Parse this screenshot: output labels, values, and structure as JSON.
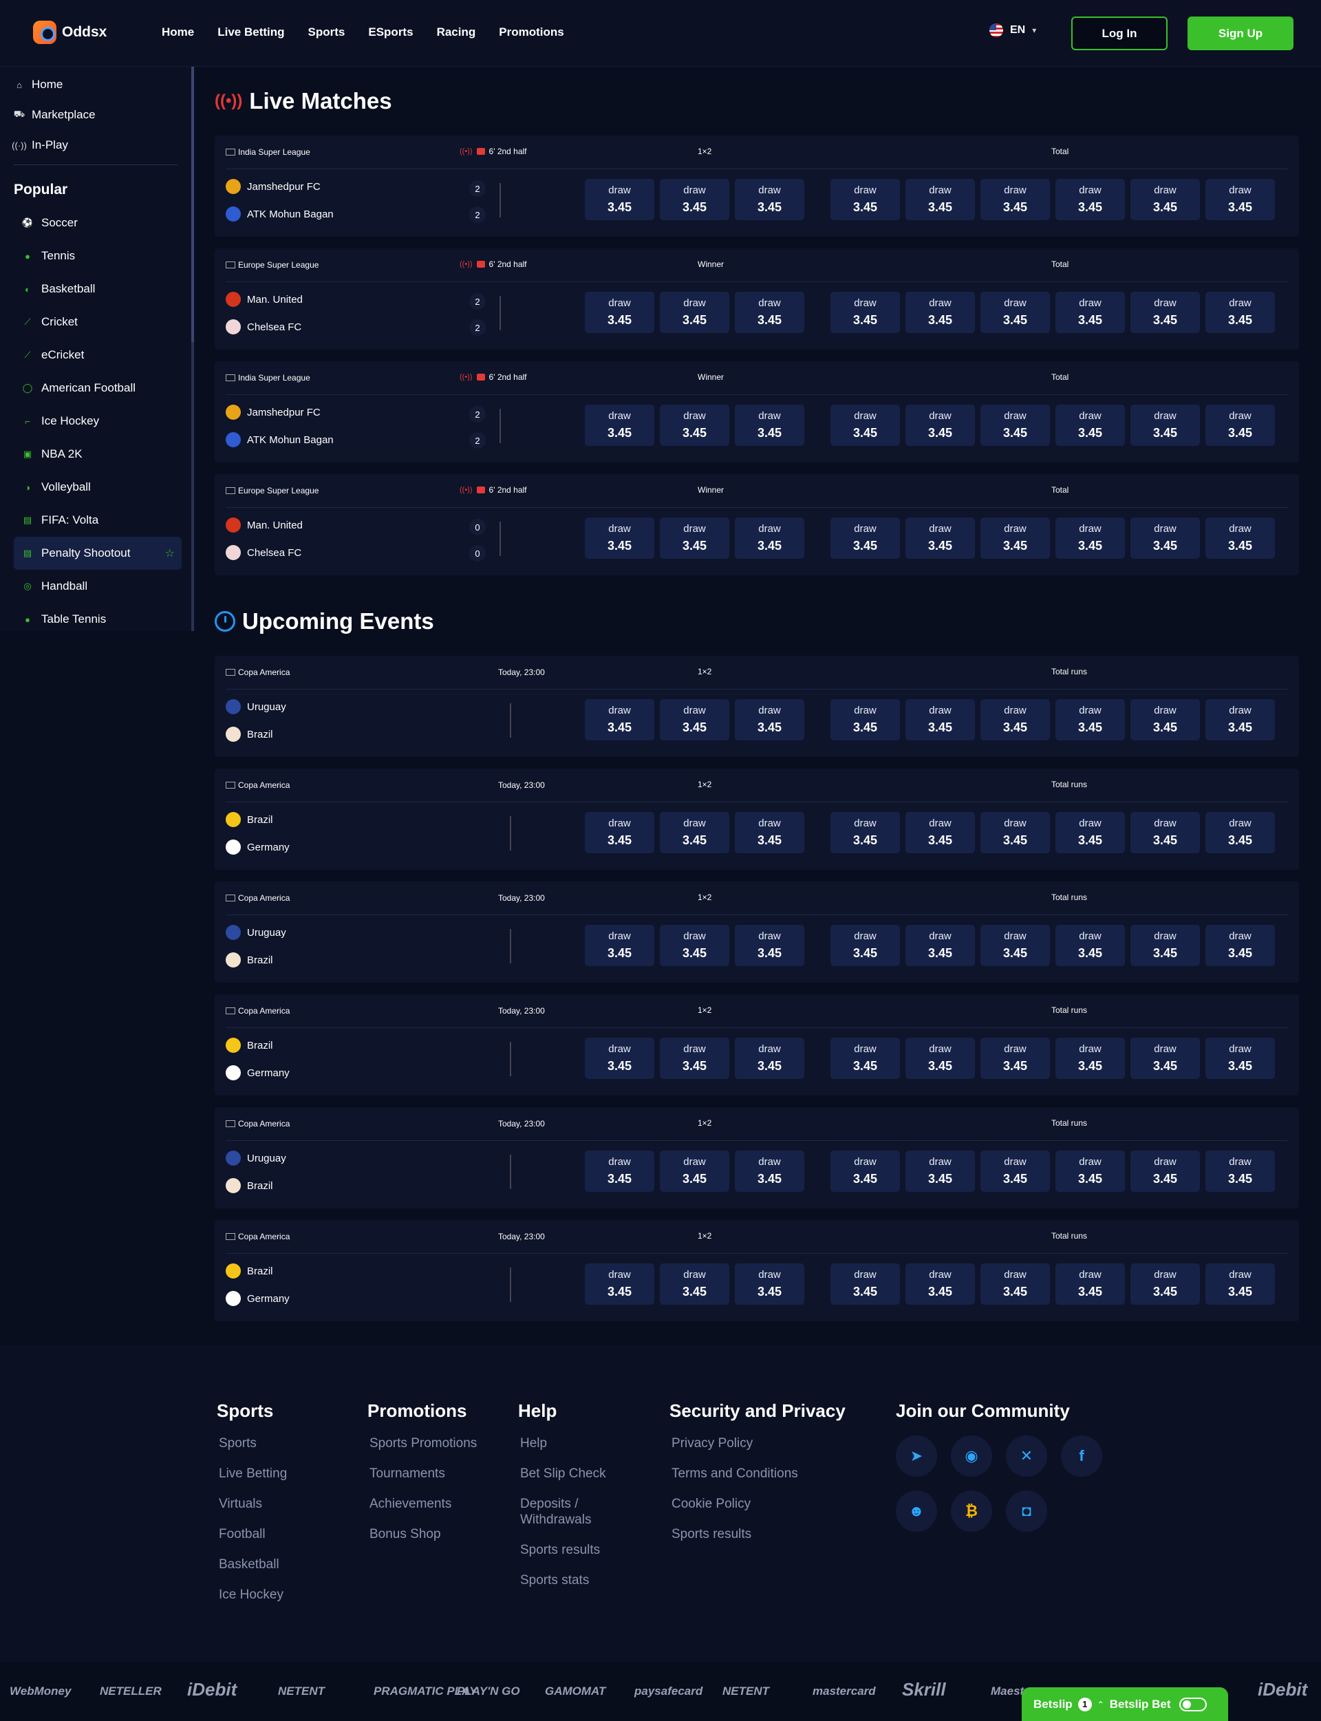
{
  "brand": {
    "name": "Oddsx"
  },
  "nav": [
    "Home",
    "Live Betting",
    "Sports",
    "ESports",
    "Racing",
    "Promotions"
  ],
  "header": {
    "lang": "EN",
    "login": "Log In",
    "signup": "Sign Up"
  },
  "sidebar": {
    "top": [
      {
        "label": "Home",
        "icon": "home-icon"
      },
      {
        "label": "Marketplace",
        "icon": "cart-icon"
      },
      {
        "label": "In-Play",
        "icon": "broadcast-icon"
      }
    ],
    "popular_title": "Popular",
    "popular": [
      {
        "label": "Soccer",
        "icon": "⚽"
      },
      {
        "label": "Tennis",
        "icon": "●"
      },
      {
        "label": "Basketball",
        "icon": "◐"
      },
      {
        "label": "Cricket",
        "icon": "⟋"
      },
      {
        "label": "eCricket",
        "icon": "⟋"
      },
      {
        "label": "American Football",
        "icon": "◯"
      },
      {
        "label": "Ice Hockey",
        "icon": "⌐"
      },
      {
        "label": "NBA 2K",
        "icon": "▣"
      },
      {
        "label": "Volleyball",
        "icon": "◑"
      },
      {
        "label": "FIFA: Volta",
        "icon": "▤"
      },
      {
        "label": "Penalty Shootout",
        "icon": "▤",
        "active": true
      },
      {
        "label": "Handball",
        "icon": "◎"
      },
      {
        "label": "Table Tennis",
        "icon": "●"
      }
    ]
  },
  "live": {
    "title": "Live Matches",
    "matches": [
      {
        "league": "India Super League",
        "time": "6' 2nd half",
        "h1": "1×2",
        "h2": "Total",
        "teams": [
          "Jamshedpur FC",
          "ATK Mohun Bagan"
        ],
        "scores": [
          "2",
          "2"
        ],
        "c": [
          "#e8a317",
          "#2f5bd3"
        ]
      },
      {
        "league": "Europe Super League",
        "time": "6' 2nd half",
        "h1": "Winner",
        "h2": "Total",
        "teams": [
          "Man. United",
          "Chelsea FC"
        ],
        "scores": [
          "2",
          "2"
        ],
        "c": [
          "#d4351c",
          "#f0d7d7"
        ]
      },
      {
        "league": "India Super League",
        "time": "6' 2nd half",
        "h1": "Winner",
        "h2": "Total",
        "teams": [
          "Jamshedpur FC",
          "ATK Mohun Bagan"
        ],
        "scores": [
          "2",
          "2"
        ],
        "c": [
          "#e8a317",
          "#2f5bd3"
        ]
      },
      {
        "league": "Europe Super League",
        "time": "6' 2nd half",
        "h1": "Winner",
        "h2": "Total",
        "teams": [
          "Man. United",
          "Chelsea FC"
        ],
        "scores": [
          "0",
          "0"
        ],
        "c": [
          "#d4351c",
          "#f0d7d7"
        ]
      }
    ]
  },
  "upcoming": {
    "title": "Upcoming Events",
    "matches": [
      {
        "league": "Copa America",
        "time": "Today, 23:00",
        "h1": "1×2",
        "h2": "Total runs",
        "teams": [
          "Uruguay",
          "Brazil"
        ],
        "c": [
          "#2b4aa0",
          "#f3e2d0"
        ]
      },
      {
        "league": "Copa America",
        "time": "Today, 23:00",
        "h1": "1×2",
        "h2": "Total runs",
        "teams": [
          "Brazil",
          "Germany"
        ],
        "c": [
          "#f5c518",
          "#ffffff"
        ]
      },
      {
        "league": "Copa America",
        "time": "Today, 23:00",
        "h1": "1×2",
        "h2": "Total runs",
        "teams": [
          "Uruguay",
          "Brazil"
        ],
        "c": [
          "#2b4aa0",
          "#f3e2d0"
        ]
      },
      {
        "league": "Copa America",
        "time": "Today, 23:00",
        "h1": "1×2",
        "h2": "Total runs",
        "teams": [
          "Brazil",
          "Germany"
        ],
        "c": [
          "#f5c518",
          "#ffffff"
        ]
      },
      {
        "league": "Copa America",
        "time": "Today, 23:00",
        "h1": "1×2",
        "h2": "Total runs",
        "teams": [
          "Uruguay",
          "Brazil"
        ],
        "c": [
          "#2b4aa0",
          "#f3e2d0"
        ]
      },
      {
        "league": "Copa America",
        "time": "Today, 23:00",
        "h1": "1×2",
        "h2": "Total runs",
        "teams": [
          "Brazil",
          "Germany"
        ],
        "c": [
          "#f5c518",
          "#ffffff"
        ]
      }
    ]
  },
  "odd": {
    "label": "draw",
    "value": "3.45"
  },
  "footer": {
    "cols": [
      {
        "title": "Sports",
        "links": [
          "Sports",
          "Live Betting",
          "Virtuals",
          "Football",
          "Basketball",
          "Ice Hockey"
        ]
      },
      {
        "title": "Promotions",
        "links": [
          "Sports Promotions",
          "Tournaments",
          "Achievements",
          "Bonus Shop"
        ]
      },
      {
        "title": "Help",
        "links": [
          "Help",
          "Bet Slip Check",
          "Deposits / Withdrawals",
          "Sports results",
          "Sports stats"
        ]
      },
      {
        "title": "Security and Privacy",
        "links": [
          "Privacy Policy",
          "Terms and Conditions",
          "Cookie Policy",
          "Sports results"
        ]
      }
    ],
    "community_title": "Join our Community",
    "social": [
      {
        "name": "telegram-icon",
        "g": "➤"
      },
      {
        "name": "github-icon",
        "g": "◉"
      },
      {
        "name": "x-icon",
        "g": "✕"
      },
      {
        "name": "facebook-icon",
        "g": "f"
      },
      {
        "name": "discord-icon",
        "g": "☻"
      },
      {
        "name": "bitcoin-icon",
        "g": "₿"
      },
      {
        "name": "instagram-icon",
        "g": "◘"
      }
    ]
  },
  "payments": [
    "WebMoney",
    "NETELLER",
    "iDebit",
    "NETENT",
    "PRAGMATIC PLAY",
    "PLAY'N GO",
    "GAMOMAT",
    "paysafecard",
    "NETENT",
    "mastercard",
    "Skrill",
    "Maestro",
    "iDebit"
  ],
  "betslip": {
    "label": "Betslip",
    "count": "1",
    "bet_label": "Betslip Bet"
  }
}
